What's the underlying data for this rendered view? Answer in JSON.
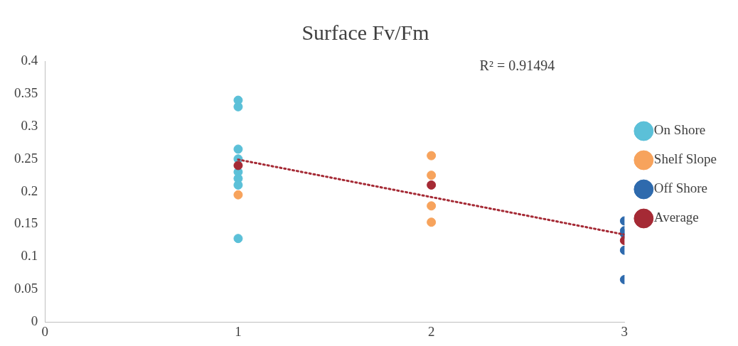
{
  "chart_data": {
    "type": "scatter",
    "title": "Surface Fv/Fm",
    "xlim": [
      0,
      3
    ],
    "xticks": [
      0,
      1,
      2,
      3
    ],
    "ylim": [
      0,
      0.4
    ],
    "yticks": [
      0,
      0.05,
      0.1,
      0.15,
      0.2,
      0.25,
      0.3,
      0.35,
      0.4
    ],
    "grid": false,
    "legend": "right",
    "marker": "circle",
    "annotations": [
      "R² = 0.91494"
    ],
    "series": [
      {
        "name": "On Shore",
        "color": "#5bc0d8",
        "x": [
          1,
          1,
          1,
          1,
          1,
          1,
          1,
          1
        ],
        "values": [
          0.34,
          0.33,
          0.265,
          0.25,
          0.23,
          0.22,
          0.21,
          0.128
        ]
      },
      {
        "name": "Shelf Slope",
        "color": "#f7a35c",
        "x": [
          1,
          2,
          2,
          2,
          2
        ],
        "values": [
          0.195,
          0.255,
          0.225,
          0.178,
          0.153
        ]
      },
      {
        "name": "Off Shore",
        "color": "#2e6aad",
        "x": [
          3,
          3,
          3,
          3,
          3
        ],
        "values": [
          0.155,
          0.14,
          0.135,
          0.11,
          0.065
        ]
      },
      {
        "name": "Average",
        "color": "#a52a35",
        "x": [
          1,
          2,
          3
        ],
        "values": [
          0.24,
          0.21,
          0.125
        ]
      },
      {
        "type": "line",
        "color": "#a52a35",
        "line_style": "dotted",
        "marker": "none",
        "x": [
          1,
          3
        ],
        "values": [
          0.249,
          0.134
        ]
      }
    ]
  }
}
